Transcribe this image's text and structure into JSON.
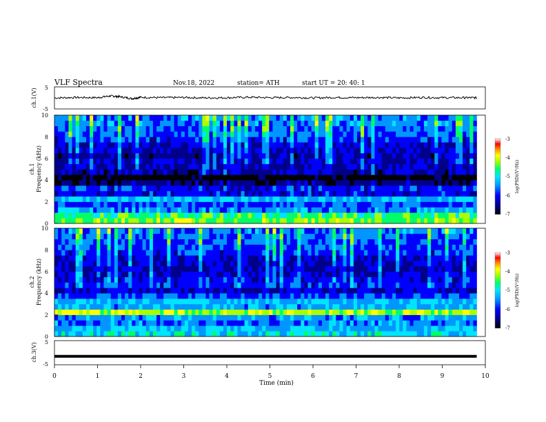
{
  "header": {
    "title": "VLF  Spectra",
    "date": "Nov.18, 2022",
    "station": "station= ATH",
    "start": "start  UT  =    20: 40: 1"
  },
  "colors": {
    "background": "#ffffff",
    "trace": "#000000",
    "colormap": [
      "#000000",
      "#00008b",
      "#0000ff",
      "#0096ff",
      "#00e5ff",
      "#00ff66",
      "#aaff00",
      "#ffff00",
      "#ff8c00",
      "#ff0000",
      "#ffffff"
    ]
  },
  "chart_data": [
    {
      "type": "line",
      "panel": "ch1",
      "ylabel": "ch.1(V)",
      "ylim": [
        -5,
        5
      ],
      "ytick_labels": [
        "5",
        "-5"
      ],
      "x": [
        0,
        0.5,
        1,
        1.3,
        1.5,
        1.8,
        2,
        2.5,
        3,
        3.5,
        4,
        4.5,
        5,
        5.5,
        6,
        6.5,
        7,
        7.5,
        8,
        8.5,
        9,
        9.5,
        9.8
      ],
      "y": [
        0,
        0.2,
        0.1,
        0.9,
        0.6,
        -0.3,
        0.3,
        0.1,
        0.2,
        0,
        0.1,
        0.3,
        0.1,
        0.2,
        0,
        0.2,
        0.1,
        0.2,
        0,
        0.2,
        0.1,
        0.1,
        0.1
      ],
      "xlim": [
        0,
        10
      ]
    },
    {
      "type": "heatmap",
      "panel": "ch2-spectrogram-top",
      "title": "ch.1",
      "ylabel": "Frequency  (kHz)",
      "ylim": [
        0,
        10
      ],
      "ytick_labels": [
        "0",
        "2",
        "4",
        "6",
        "8",
        "10"
      ],
      "xlim": [
        0,
        9.8
      ],
      "rows_khz": [
        0.25,
        0.75,
        1.25,
        1.75,
        2.25,
        2.75,
        3.25,
        3.75,
        4.25,
        4.75,
        5.25,
        5.75,
        6.25,
        6.75,
        7.25,
        7.75,
        8.25,
        8.75,
        9.25,
        9.75
      ],
      "row_log_psd": [
        -4.2,
        -4.4,
        -5.2,
        -5.6,
        -5.0,
        -5.8,
        -5.7,
        -6.3,
        -6.8,
        -6.2,
        -6.1,
        -6.0,
        -6.2,
        -6.0,
        -5.9,
        -5.7,
        -5.5,
        -5.4,
        -5.3,
        -5.3
      ],
      "colorbar": {
        "label": "log(PSD)(V²/Hz)",
        "ticks": [
          "-3",
          "-4",
          "-5",
          "-6",
          "-7"
        ],
        "range": [
          -7,
          -3
        ]
      }
    },
    {
      "type": "heatmap",
      "panel": "ch2-spectrogram-bottom",
      "title": "ch.2",
      "ylabel": "Frequency  (kHz)",
      "ylim": [
        0,
        10
      ],
      "ytick_labels": [
        "0",
        "2",
        "4",
        "6",
        "8",
        "10"
      ],
      "xlim": [
        0,
        9.8
      ],
      "rows_khz": [
        0.25,
        0.75,
        1.25,
        1.75,
        2.25,
        2.75,
        3.25,
        3.75,
        4.25,
        4.75,
        5.25,
        5.75,
        6.25,
        6.75,
        7.25,
        7.75,
        8.25,
        8.75,
        9.25,
        9.75
      ],
      "row_log_psd": [
        -4.8,
        -5.0,
        -5.3,
        -5.2,
        -4.0,
        -5.1,
        -5.0,
        -5.6,
        -6.0,
        -5.7,
        -5.8,
        -5.9,
        -6.1,
        -6.0,
        -5.9,
        -5.7,
        -5.6,
        -5.5,
        -5.4,
        -5.3
      ],
      "colorbar": {
        "label": "log(PSD)(V²/Hz)",
        "ticks": [
          "-3",
          "-4",
          "-5",
          "-6",
          "-7"
        ],
        "range": [
          -7,
          -3
        ]
      }
    },
    {
      "type": "line",
      "panel": "ch3",
      "ylabel": "ch.3(V)",
      "ylim": [
        -5,
        5
      ],
      "ytick_labels": [
        "5",
        "-5"
      ],
      "x": [
        0,
        9.8
      ],
      "y": [
        -1.5,
        -1.5
      ],
      "xlim": [
        0,
        10
      ],
      "xlabel": "Time  (min)",
      "xtick_labels": [
        "0",
        "1",
        "2",
        "3",
        "4",
        "5",
        "6",
        "7",
        "8",
        "9",
        "10"
      ]
    }
  ]
}
